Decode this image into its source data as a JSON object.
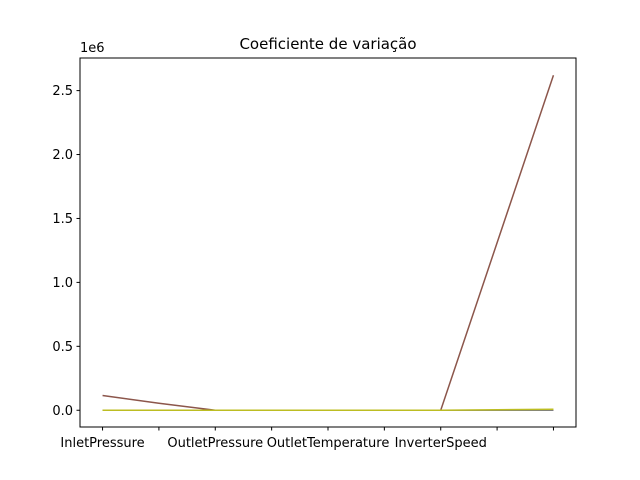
{
  "chart_data": {
    "type": "line",
    "title": "Coeficiente de variação",
    "xlabel": "",
    "ylabel": "",
    "y_offset_label": "1e6",
    "categories": [
      0,
      1,
      2,
      3,
      4,
      5,
      6,
      7,
      8
    ],
    "x_tick_positions": [
      0,
      2,
      4,
      6,
      8
    ],
    "x_tick_labels": [
      "InletPressure",
      "OutletPressure",
      "OutletTemperature",
      "InverterSpeed"
    ],
    "x_labeled_positions": [
      0,
      2,
      4,
      6
    ],
    "x_minor_positions": [
      1,
      3,
      5,
      7
    ],
    "xlim": [
      -0.4,
      8.4
    ],
    "ylim": [
      -131000,
      2755000
    ],
    "y_ticks": [
      0,
      500000,
      1000000,
      1500000,
      2000000,
      2500000
    ],
    "y_tick_labels": [
      "0.0",
      "0.5",
      "1.0",
      "1.5",
      "2.0",
      "2.5"
    ],
    "grid": false,
    "legend": "none",
    "series": [
      {
        "color": "#1f77b4",
        "values": [
          0,
          0,
          0,
          0,
          0,
          0,
          0,
          0,
          0
        ]
      },
      {
        "color": "#ff7f0e",
        "values": [
          0,
          0,
          0,
          0,
          0,
          0,
          0,
          0,
          0
        ]
      },
      {
        "color": "#2ca02c",
        "values": [
          0,
          0,
          0,
          0,
          0,
          0,
          0,
          0,
          0
        ]
      },
      {
        "color": "#d62728",
        "values": [
          0,
          0,
          0,
          0,
          0,
          0,
          0,
          0,
          0
        ]
      },
      {
        "color": "#9467bd",
        "values": [
          0,
          0,
          0,
          0,
          0,
          0,
          0,
          0,
          0
        ]
      },
      {
        "color": "#8c564b",
        "values": [
          115000,
          55000,
          0,
          0,
          0,
          0,
          0,
          1310000,
          2620000
        ]
      },
      {
        "color": "#e377c2",
        "values": [
          0,
          0,
          0,
          0,
          0,
          0,
          0,
          0,
          0
        ]
      },
      {
        "color": "#7f7f7f",
        "values": [
          0,
          0,
          0,
          0,
          0,
          0,
          0,
          0,
          0
        ]
      },
      {
        "color": "#bcbd22",
        "values": [
          0,
          0,
          0,
          0,
          0,
          0,
          0,
          4000,
          8000
        ]
      }
    ]
  }
}
